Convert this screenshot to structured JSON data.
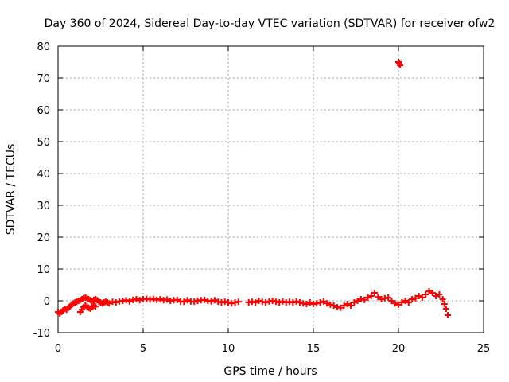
{
  "chart_data": {
    "type": "scatter",
    "title": "Day 360 of 2024, Sidereal Day-to-day VTEC variation (SDTVAR) for receiver ofw2",
    "xlabel": "GPS time / hours",
    "ylabel": "SDTVAR / TECUs",
    "xlim": [
      0,
      25
    ],
    "ylim": [
      -10,
      80
    ],
    "xticks": [
      0,
      5,
      10,
      15,
      20,
      25
    ],
    "yticks": [
      -10,
      0,
      10,
      20,
      30,
      40,
      50,
      60,
      70,
      80
    ],
    "grid": true,
    "marker": "+",
    "series": [
      {
        "name": "SDTVAR",
        "color": "#ff0000",
        "x": [
          0.0,
          0.1,
          0.2,
          0.3,
          0.4,
          0.5,
          0.6,
          0.7,
          0.8,
          0.9,
          1.0,
          1.1,
          1.2,
          1.3,
          1.4,
          1.5,
          1.6,
          1.7,
          1.8,
          1.9,
          2.0,
          2.1,
          2.2,
          2.3,
          2.4,
          2.5,
          2.6,
          2.7,
          2.8,
          2.9,
          3.0,
          3.2,
          3.4,
          3.6,
          3.8,
          4.0,
          4.2,
          4.4,
          4.6,
          4.8,
          5.0,
          5.2,
          5.4,
          5.6,
          5.8,
          6.0,
          6.2,
          6.4,
          6.6,
          6.8,
          7.0,
          7.2,
          7.4,
          7.6,
          7.8,
          8.0,
          8.2,
          8.4,
          8.6,
          8.8,
          9.0,
          9.2,
          9.4,
          9.6,
          9.8,
          10.0,
          10.2,
          10.4,
          10.6,
          11.2,
          11.4,
          11.6,
          11.8,
          12.0,
          12.2,
          12.4,
          12.6,
          12.8,
          13.0,
          13.2,
          13.4,
          13.6,
          13.8,
          14.0,
          14.2,
          14.4,
          14.6,
          14.8,
          15.0,
          15.2,
          15.4,
          15.6,
          15.8,
          16.0,
          16.2,
          16.4,
          16.6,
          16.8,
          17.0,
          17.2,
          17.4,
          17.6,
          17.8,
          18.0,
          18.2,
          18.4,
          18.6,
          18.8,
          19.0,
          19.2,
          19.4,
          19.6,
          19.8,
          20.0,
          20.2,
          20.4,
          20.6,
          20.8,
          21.0,
          21.2,
          21.4,
          21.6,
          21.8,
          22.0,
          22.2,
          22.4,
          22.6,
          22.7,
          22.8,
          22.9,
          20.0,
          20.05,
          20.1,
          1.3,
          1.4,
          1.5,
          1.6,
          1.7,
          1.8,
          1.9,
          2.0,
          2.1,
          2.2
        ],
        "y": [
          -3.5,
          -4.0,
          -3.5,
          -3.0,
          -2.5,
          -2.8,
          -2.2,
          -1.8,
          -1.2,
          -0.8,
          -0.5,
          -0.3,
          0.0,
          0.2,
          0.5,
          0.8,
          1.0,
          0.8,
          0.5,
          0.2,
          0.0,
          0.3,
          0.5,
          0.2,
          -0.3,
          -0.5,
          -0.8,
          -0.5,
          -0.3,
          -0.5,
          -0.8,
          -0.3,
          -0.5,
          -0.2,
          0.0,
          0.2,
          -0.2,
          0.3,
          0.5,
          0.2,
          0.5,
          0.6,
          0.4,
          0.6,
          0.3,
          0.5,
          0.2,
          0.4,
          0.0,
          0.2,
          0.3,
          -0.2,
          -0.3,
          0.2,
          -0.2,
          -0.3,
          0.0,
          0.2,
          0.3,
          0.0,
          -0.2,
          0.2,
          -0.3,
          -0.5,
          -0.3,
          -0.5,
          -0.8,
          -0.5,
          -0.3,
          -0.5,
          -0.3,
          -0.5,
          0.0,
          -0.3,
          -0.5,
          -0.2,
          0.0,
          -0.3,
          -0.5,
          -0.2,
          -0.5,
          -0.3,
          -0.5,
          -0.2,
          -0.5,
          -0.8,
          -1.0,
          -0.5,
          -1.0,
          -0.8,
          -0.5,
          -0.2,
          -0.8,
          -1.2,
          -1.5,
          -2.0,
          -2.2,
          -1.5,
          -1.0,
          -1.5,
          -0.5,
          0.0,
          0.5,
          0.3,
          1.0,
          1.5,
          2.5,
          1.2,
          0.5,
          0.8,
          1.0,
          0.0,
          -0.8,
          -1.2,
          -0.5,
          0.0,
          -0.5,
          0.5,
          0.8,
          1.5,
          1.0,
          2.0,
          3.0,
          2.5,
          1.5,
          2.0,
          0.5,
          -1.0,
          -2.5,
          -4.5,
          75.0,
          74.5,
          74.0,
          -3.5,
          -2.8,
          -2.0,
          -1.5,
          -1.8,
          -2.2,
          -2.5,
          -2.0,
          -1.5,
          -1.8
        ]
      }
    ]
  }
}
